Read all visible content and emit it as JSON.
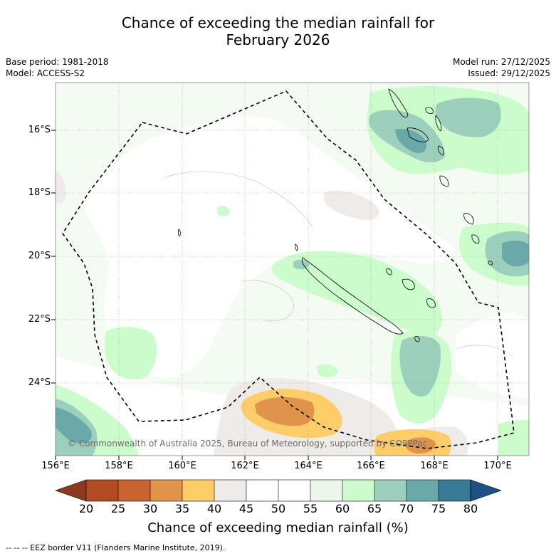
{
  "title_line1": "Chance of exceeding the median rainfall for",
  "title_line2": "February 2026",
  "base_period": "Base period: 1981-2018",
  "model": "Model: ACCESS-S2",
  "model_run": "Model run: 27/12/2025",
  "issued": "Issued: 29/12/2025",
  "lat_labels": [
    "16°S",
    "18°S",
    "20°S",
    "22°S",
    "24°S"
  ],
  "lon_labels": [
    "156°E",
    "158°E",
    "160°E",
    "162°E",
    "164°E",
    "166°E",
    "168°E",
    "170°E"
  ],
  "copyright": "© Commonwealth of Australia 2025, Bureau of Meteorology, supported by COSPPac",
  "colorbar": {
    "ticks": [
      "20",
      "25",
      "30",
      "35",
      "40",
      "45",
      "50",
      "55",
      "60",
      "65",
      "70",
      "75",
      "80"
    ],
    "colors": [
      "#8b3a1e",
      "#b24a22",
      "#c9632f",
      "#e0944a",
      "#fdcd6a",
      "#efebe8",
      "#ffffff",
      "#ffffff",
      "#ebf7ea",
      "#ccfccc",
      "#9dcfbd",
      "#6aa9aa",
      "#3a7a99",
      "#1e5181"
    ],
    "title": "Chance of exceeding median rainfall (%)"
  },
  "footnote": "--  --  -- EEZ border V11 (Flanders Marine Institute, 2019)."
}
